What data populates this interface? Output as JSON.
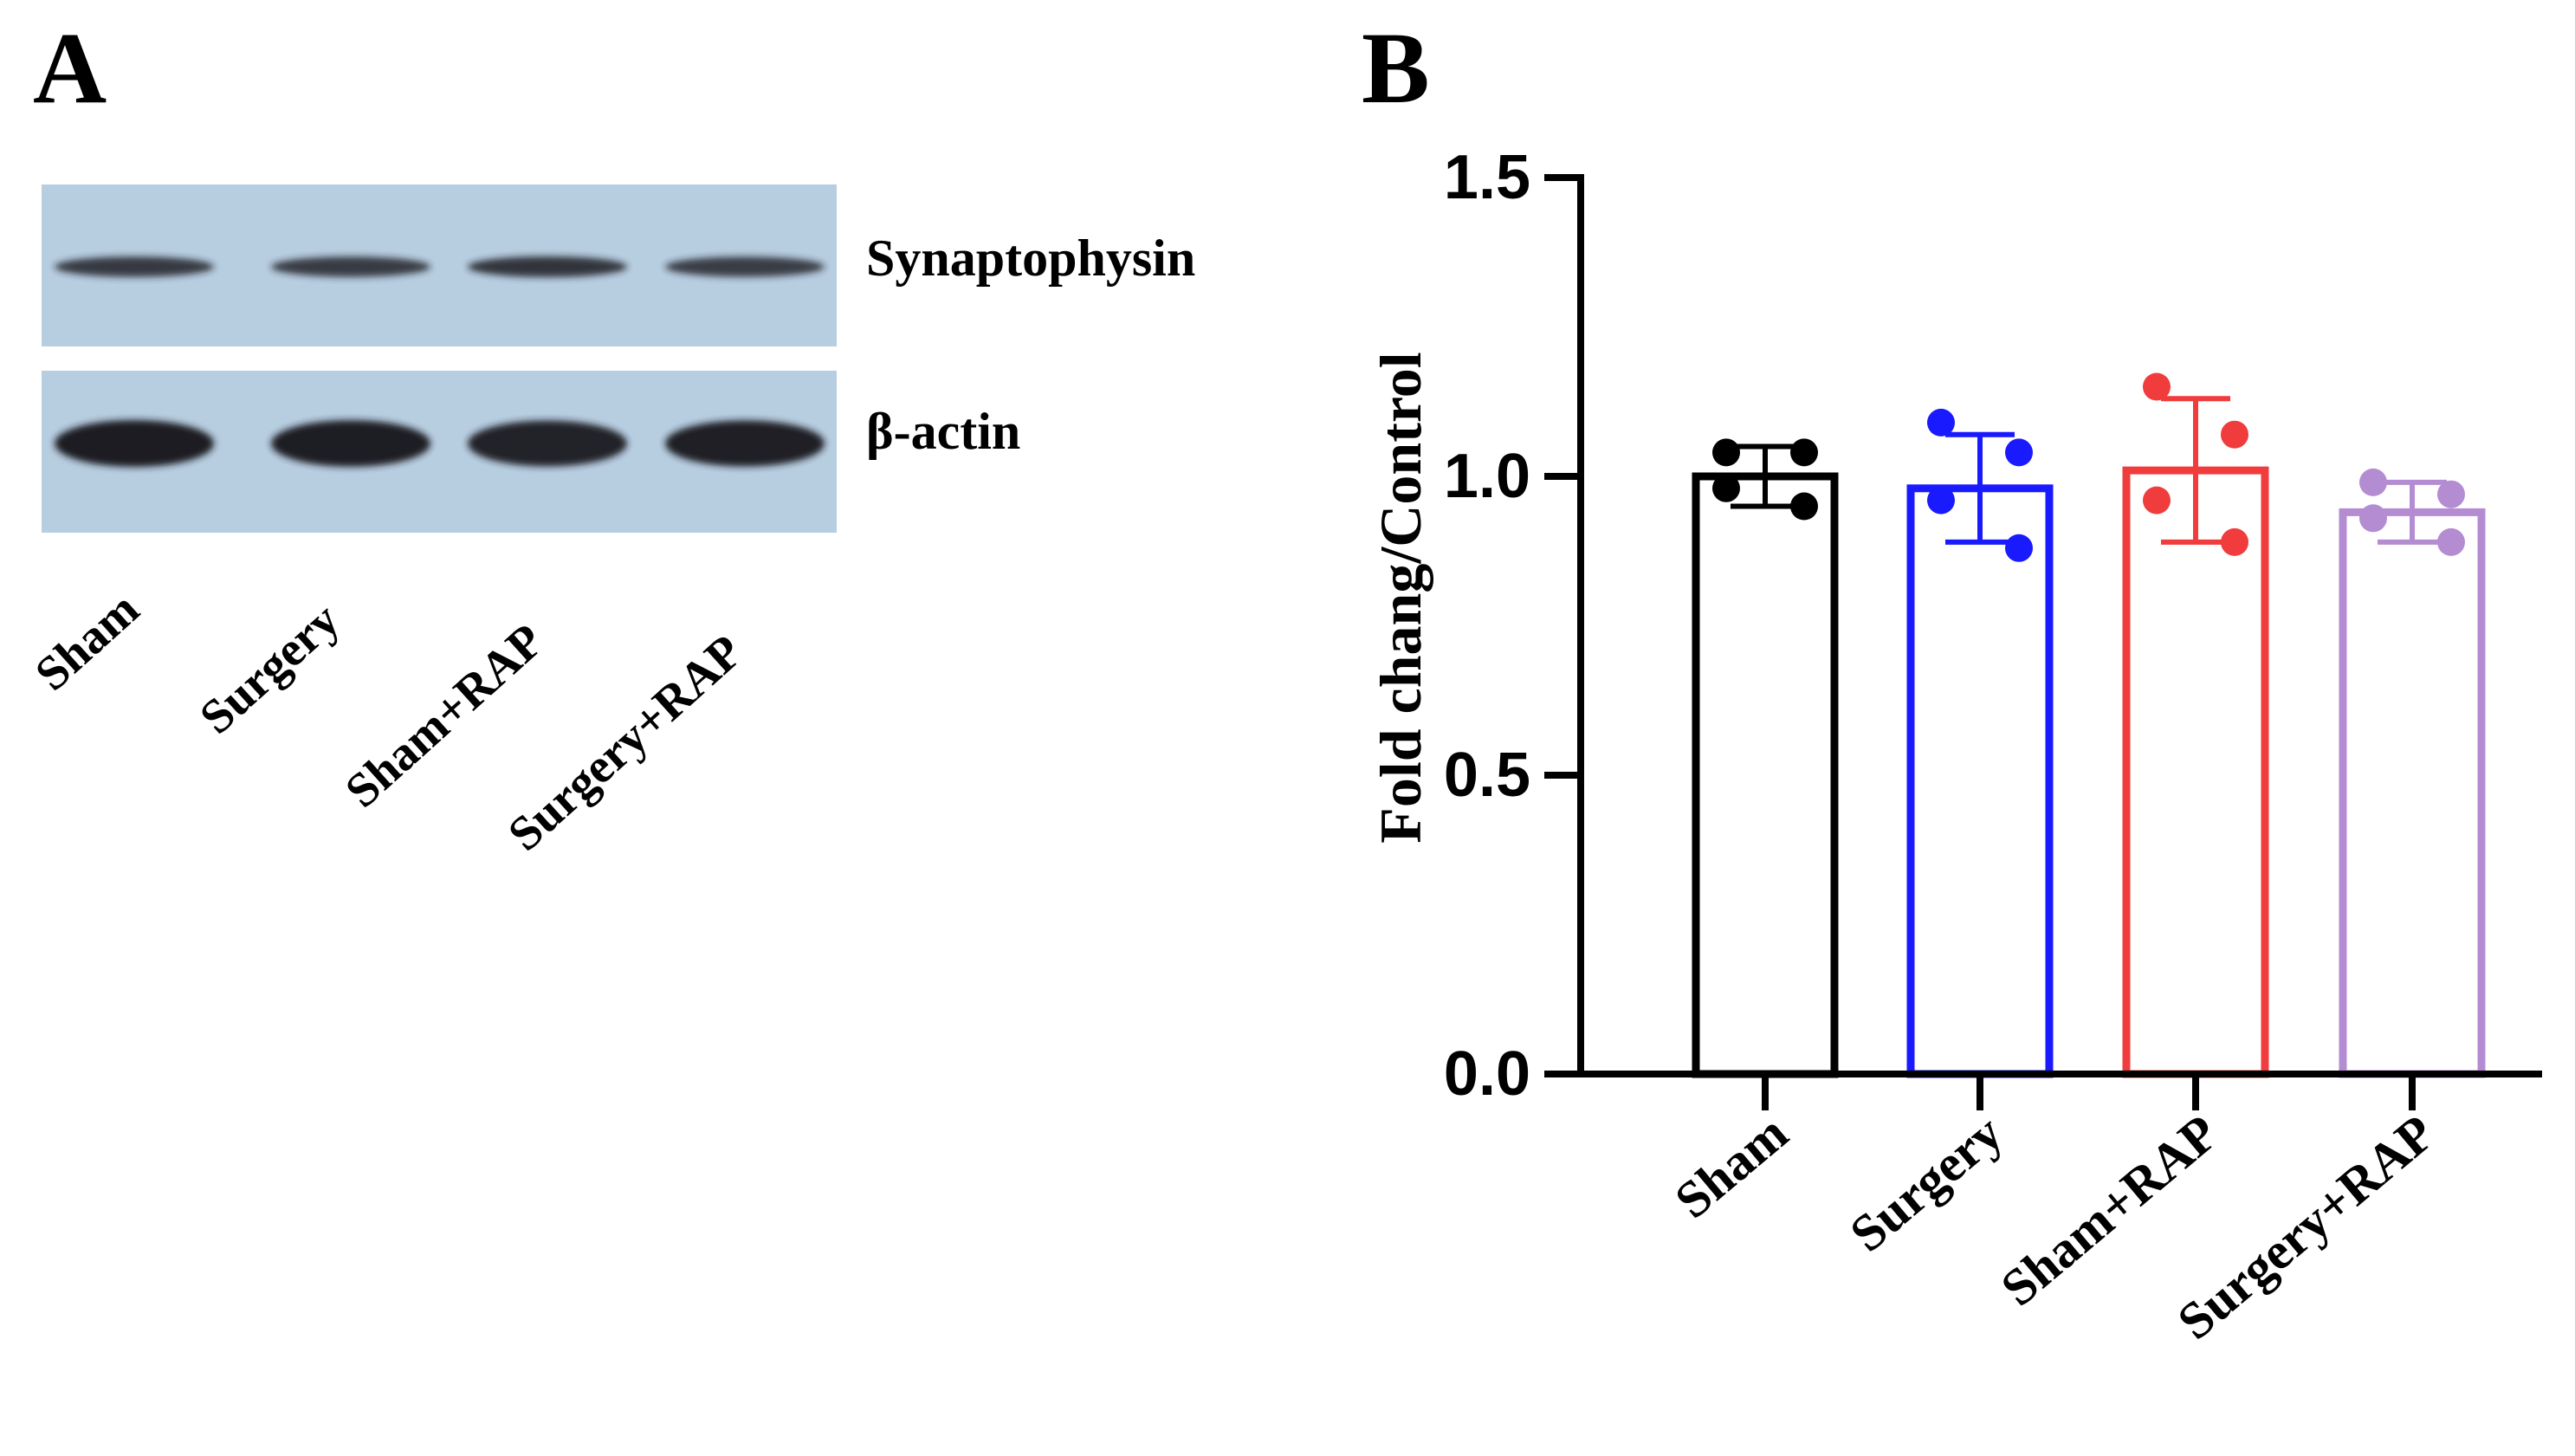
{
  "panel_a": {
    "letter": "A",
    "bands": [
      {
        "name": "Synaptophysin",
        "intensity": [
          0.62,
          0.6,
          0.7,
          0.58
        ]
      },
      {
        "name": "β-actin",
        "intensity": [
          1.0,
          0.98,
          0.92,
          0.95
        ]
      }
    ],
    "lanes": [
      "Sham",
      "Surgery",
      "Sham+RAP",
      "Surgery+RAP"
    ]
  },
  "panel_b": {
    "letter": "B"
  },
  "colors": {
    "membrane": "#b7cde0",
    "band": "#1c1e24",
    "series": [
      "#000000",
      "#1a1aff",
      "#f03c3c",
      "#b48cd2"
    ]
  },
  "chart_data": {
    "type": "bar",
    "categories": [
      "Sham",
      "Surgery",
      "Sham+RAP",
      "Surgery+RAP"
    ],
    "values": [
      1.0,
      0.98,
      1.01,
      0.94
    ],
    "errors": [
      0.05,
      0.09,
      0.12,
      0.05
    ],
    "points": [
      [
        1.04,
        1.04,
        0.98,
        0.95
      ],
      [
        1.09,
        1.04,
        0.96,
        0.88
      ],
      [
        1.15,
        1.07,
        0.96,
        0.89
      ],
      [
        0.99,
        0.97,
        0.93,
        0.89
      ]
    ],
    "title": "",
    "xlabel": "",
    "ylabel": "Fold chang/Control",
    "ylim": [
      0,
      1.5
    ],
    "yticks": [
      "0.0",
      "0.5",
      "1.0",
      "1.5"
    ],
    "grid": false,
    "legend": "none"
  }
}
